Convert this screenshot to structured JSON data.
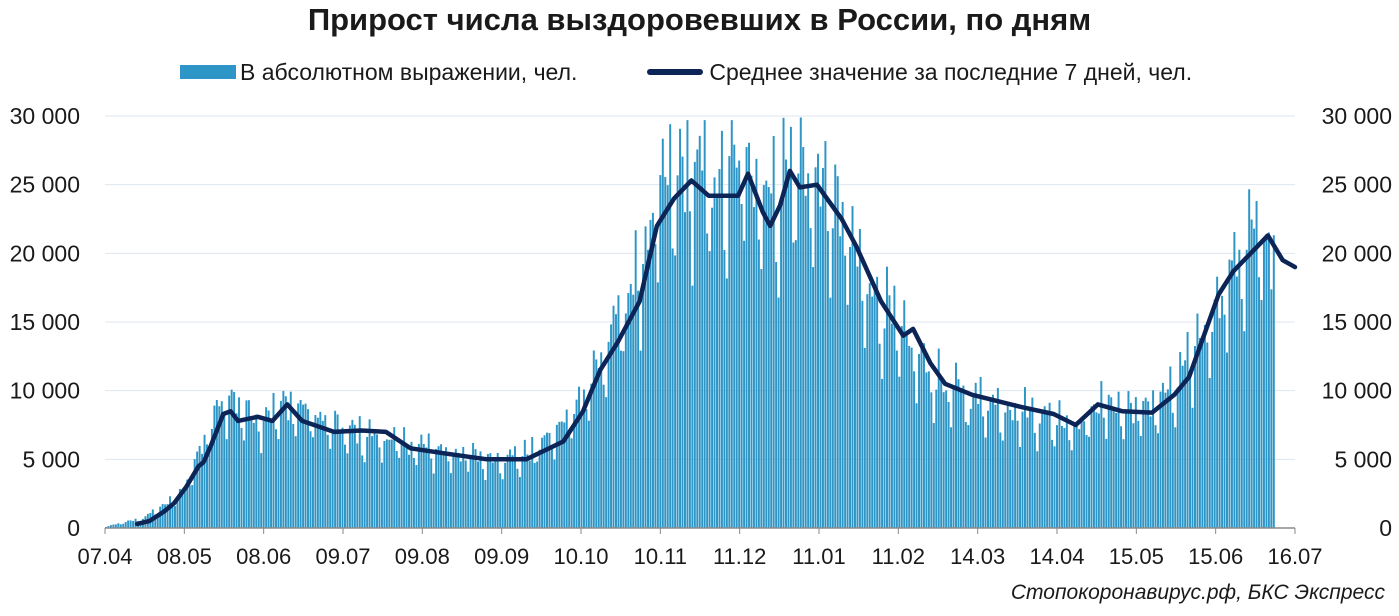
{
  "chart_data": {
    "type": "bar",
    "title": "Прирост числа выздоровевших в России, по дням",
    "source": "Стопокоронавирус.рф, БКС Экспресс",
    "colors": {
      "bars": "#2e96c7",
      "line": "#0d2456",
      "grid": "#dfe6ee"
    },
    "ylim": [
      0,
      30000
    ],
    "y_ticks": [
      0,
      5000,
      10000,
      15000,
      20000,
      25000,
      30000
    ],
    "y_tick_labels": [
      "0",
      "5 000",
      "10 000",
      "15 000",
      "20 000",
      "25 000",
      "30 000"
    ],
    "x_tick_labels": [
      "07.04",
      "08.05",
      "08.06",
      "09.07",
      "09.08",
      "09.09",
      "10.10",
      "10.11",
      "11.12",
      "11.01",
      "11.02",
      "14.03",
      "14.04",
      "15.05",
      "15.06",
      "16.07"
    ],
    "y_axes": "left and right",
    "grid": true,
    "legend_position": "top",
    "series": [
      {
        "name": "В абсолютном выражении, чел.",
        "type": "bar",
        "anchors": [
          [
            "07.04",
            100
          ],
          [
            "22.04",
            700
          ],
          [
            "08.05",
            2500
          ],
          [
            "20.05",
            7500
          ],
          [
            "25.05",
            9500
          ],
          [
            "08.06",
            8000
          ],
          [
            "22.06",
            9000
          ],
          [
            "09.07",
            7200
          ],
          [
            "09.08",
            6000
          ],
          [
            "09.09",
            5000
          ],
          [
            "25.09",
            5300
          ],
          [
            "10.10",
            7500
          ],
          [
            "25.10",
            12000
          ],
          [
            "10.11",
            19000
          ],
          [
            "20.11",
            24500
          ],
          [
            "01.12",
            26000
          ],
          [
            "11.12",
            24500
          ],
          [
            "24.12",
            26500
          ],
          [
            "03.01",
            24000
          ],
          [
            "11.01",
            26500
          ],
          [
            "25.01",
            24000
          ],
          [
            "11.02",
            17500
          ],
          [
            "25.02",
            13500
          ],
          [
            "14.03",
            10000
          ],
          [
            "14.04",
            8500
          ],
          [
            "08.05",
            7500
          ],
          [
            "15.05",
            9000
          ],
          [
            "01.06",
            8500
          ],
          [
            "15.06",
            10000
          ],
          [
            "01.07",
            16000
          ],
          [
            "11.07",
            19500
          ],
          [
            "16.07",
            21500
          ],
          [
            "25.07",
            19000
          ]
        ]
      },
      {
        "name": "Среднее значение за последние 7 дней, чел.",
        "type": "line",
        "points": [
          [
            "20.04",
            300
          ],
          [
            "25.04",
            500
          ],
          [
            "01.05",
            1200
          ],
          [
            "05.05",
            1800
          ],
          [
            "10.05",
            3000
          ],
          [
            "15.05",
            4500
          ],
          [
            "17.05",
            4800
          ],
          [
            "20.05",
            6000
          ],
          [
            "25.05",
            8300
          ],
          [
            "28.05",
            8500
          ],
          [
            "31.05",
            7800
          ],
          [
            "08.06",
            8100
          ],
          [
            "14.06",
            7800
          ],
          [
            "20.06",
            9000
          ],
          [
            "26.06",
            7800
          ],
          [
            "09.07",
            7000
          ],
          [
            "20.07",
            7100
          ],
          [
            "30.07",
            7000
          ],
          [
            "09.08",
            5800
          ],
          [
            "24.08",
            5400
          ],
          [
            "09.09",
            5000
          ],
          [
            "25.09",
            5000
          ],
          [
            "10.10",
            6300
          ],
          [
            "18.10",
            8500
          ],
          [
            "25.10",
            11500
          ],
          [
            "01.11",
            13500
          ],
          [
            "10.11",
            16500
          ],
          [
            "17.11",
            22000
          ],
          [
            "24.11",
            24000
          ],
          [
            "01.12",
            25300
          ],
          [
            "08.12",
            24200
          ],
          [
            "20.12",
            24200
          ],
          [
            "24.12",
            25800
          ],
          [
            "30.12",
            23000
          ],
          [
            "02.01",
            22000
          ],
          [
            "06.01",
            23500
          ],
          [
            "10.01",
            26000
          ],
          [
            "14.01",
            24800
          ],
          [
            "21.01",
            25000
          ],
          [
            "31.01",
            22500
          ],
          [
            "06.02",
            20500
          ],
          [
            "16.02",
            16500
          ],
          [
            "25.02",
            14000
          ],
          [
            "01.03",
            14500
          ],
          [
            "08.03",
            12000
          ],
          [
            "14.03",
            10500
          ],
          [
            "25.03",
            9700
          ],
          [
            "14.04",
            8800
          ],
          [
            "27.04",
            8300
          ],
          [
            "06.05",
            7500
          ],
          [
            "15.05",
            9000
          ],
          [
            "25.05",
            8500
          ],
          [
            "06.06",
            8400
          ],
          [
            "15.06",
            9700
          ],
          [
            "21.06",
            11000
          ],
          [
            "28.06",
            14500
          ],
          [
            "03.07",
            17000
          ],
          [
            "09.07",
            18700
          ],
          [
            "16.07",
            20000
          ],
          [
            "23.07",
            21300
          ],
          [
            "29.07",
            19500
          ],
          [
            "03.08",
            19000
          ]
        ]
      }
    ]
  }
}
